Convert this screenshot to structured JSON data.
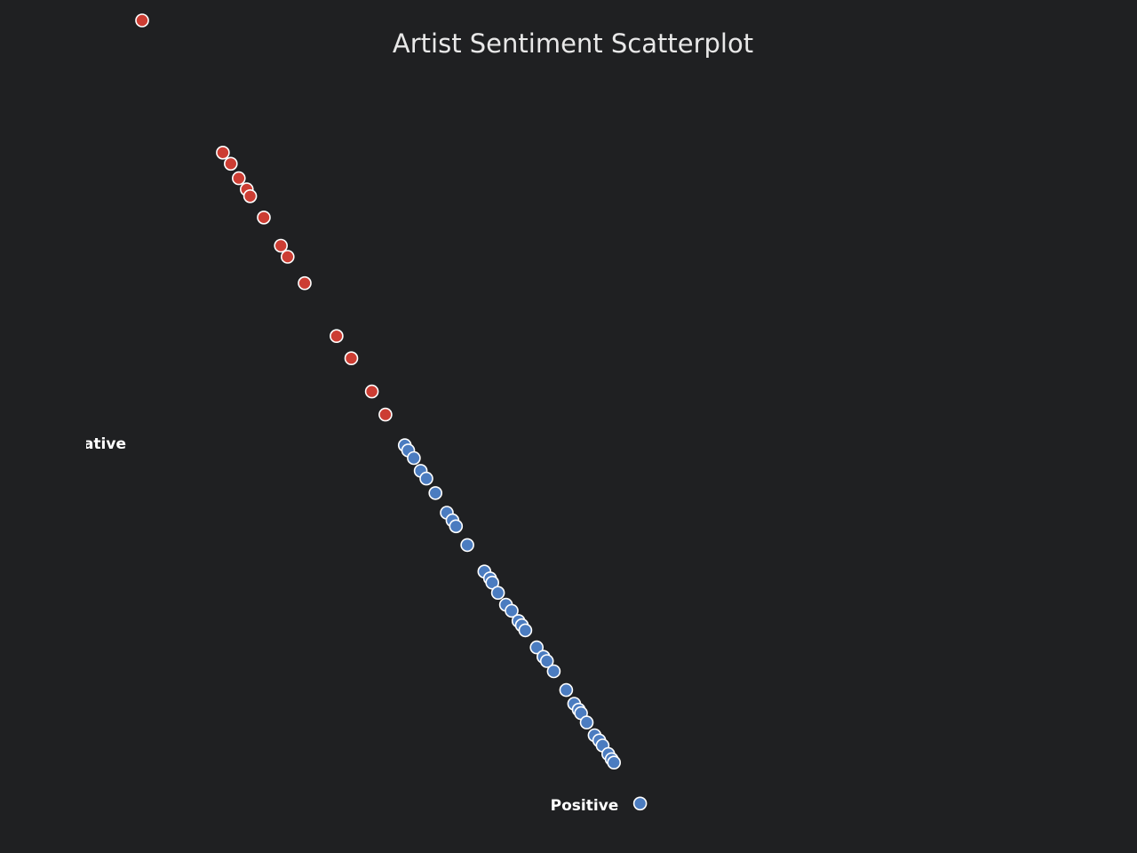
{
  "chart_data": {
    "type": "scatter",
    "title": "Artist Sentiment Scatterplot",
    "xlabel": "Positive",
    "ylabel": "Negative",
    "grid": false,
    "legend": "none",
    "colors": {
      "background": "#1f2022",
      "negative": "#cc3d33",
      "positive": "#4b7cc0",
      "marker_outline": "#ffffff",
      "text": "#ffffff"
    },
    "series": [
      {
        "color": "#cc3d33",
        "points": [
          [
            0.125,
            0.976
          ],
          [
            0.196,
            0.821
          ],
          [
            0.203,
            0.808
          ],
          [
            0.21,
            0.791
          ],
          [
            0.217,
            0.778
          ],
          [
            0.22,
            0.77
          ],
          [
            0.232,
            0.745
          ],
          [
            0.247,
            0.712
          ],
          [
            0.253,
            0.699
          ],
          [
            0.268,
            0.668
          ],
          [
            0.296,
            0.606
          ],
          [
            0.309,
            0.58
          ],
          [
            0.327,
            0.541
          ],
          [
            0.339,
            0.514
          ]
        ]
      },
      {
        "color": "#4b7cc0",
        "points": [
          [
            0.356,
            0.478
          ],
          [
            0.359,
            0.472
          ],
          [
            0.364,
            0.463
          ],
          [
            0.37,
            0.448
          ],
          [
            0.375,
            0.439
          ],
          [
            0.383,
            0.422
          ],
          [
            0.393,
            0.399
          ],
          [
            0.398,
            0.39
          ],
          [
            0.401,
            0.383
          ],
          [
            0.411,
            0.361
          ],
          [
            0.426,
            0.33
          ],
          [
            0.431,
            0.322
          ],
          [
            0.433,
            0.317
          ],
          [
            0.438,
            0.305
          ],
          [
            0.445,
            0.291
          ],
          [
            0.45,
            0.284
          ],
          [
            0.456,
            0.272
          ],
          [
            0.459,
            0.267
          ],
          [
            0.462,
            0.261
          ],
          [
            0.472,
            0.241
          ],
          [
            0.478,
            0.23
          ],
          [
            0.481,
            0.225
          ],
          [
            0.487,
            0.213
          ],
          [
            0.498,
            0.191
          ],
          [
            0.505,
            0.175
          ],
          [
            0.509,
            0.168
          ],
          [
            0.511,
            0.164
          ],
          [
            0.516,
            0.153
          ],
          [
            0.523,
            0.138
          ],
          [
            0.527,
            0.132
          ],
          [
            0.53,
            0.126
          ],
          [
            0.535,
            0.116
          ],
          [
            0.538,
            0.11
          ],
          [
            0.54,
            0.106
          ],
          [
            0.563,
            0.058
          ]
        ]
      }
    ]
  }
}
